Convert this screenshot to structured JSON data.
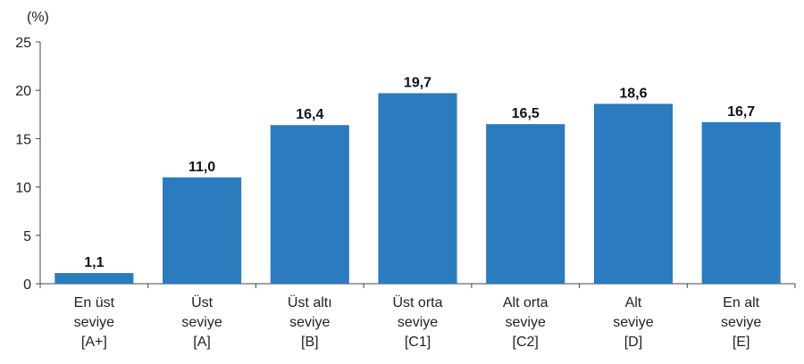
{
  "chart_data": {
    "type": "bar",
    "unit_label": "(%)",
    "categories": [
      [
        "En üst",
        "seviye",
        "[A+]"
      ],
      [
        "Üst",
        "seviye",
        "[A]"
      ],
      [
        "Üst altı",
        "seviye",
        "[B]"
      ],
      [
        "Üst orta",
        "seviye",
        "[C1]"
      ],
      [
        "Alt orta",
        "seviye",
        "[C2]"
      ],
      [
        "Alt",
        "seviye",
        "[D]"
      ],
      [
        "En alt",
        "seviye",
        "[E]"
      ]
    ],
    "values": [
      1.1,
      11.0,
      16.4,
      19.7,
      16.5,
      18.6,
      16.7
    ],
    "data_labels": [
      "1,1",
      "11,0",
      "16,4",
      "19,7",
      "16,5",
      "18,6",
      "16,7"
    ],
    "yticks": [
      0,
      5,
      10,
      15,
      20,
      25
    ],
    "ylim": [
      0,
      25
    ],
    "bar_color": "#2b7bbf",
    "grid": false,
    "legend": "none"
  }
}
